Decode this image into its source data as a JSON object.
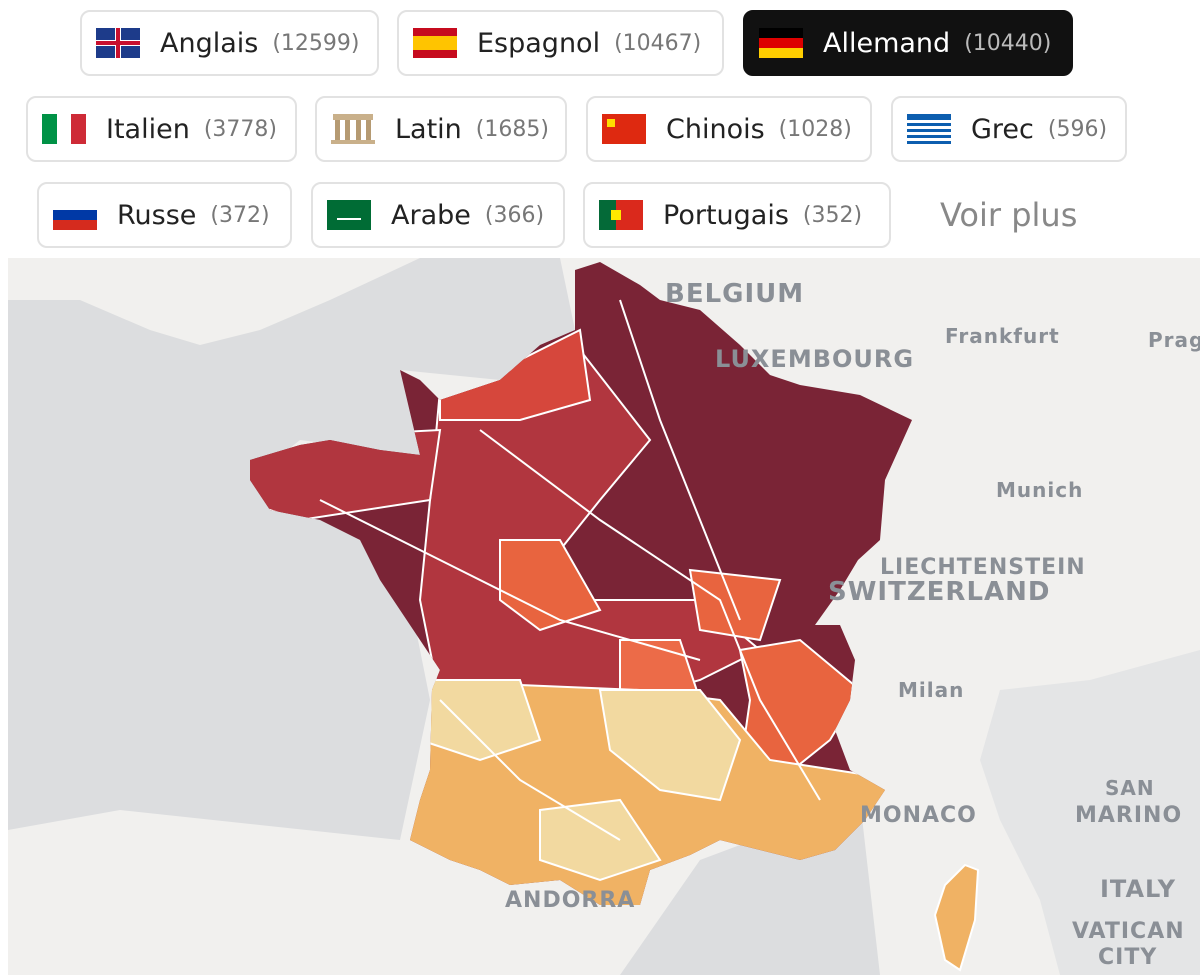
{
  "languages": [
    {
      "name": "Anglais",
      "count": "(12599)"
    },
    {
      "name": "Espagnol",
      "count": "(10467)"
    },
    {
      "name": "Allemand",
      "count": "(10440)"
    },
    {
      "name": "Italien",
      "count": "(3778)"
    },
    {
      "name": "Latin",
      "count": "(1685)"
    },
    {
      "name": "Chinois",
      "count": "(1028)"
    },
    {
      "name": "Grec",
      "count": "(596)"
    },
    {
      "name": "Russe",
      "count": "(372)"
    },
    {
      "name": "Arabe",
      "count": "(366)"
    },
    {
      "name": "Portugais",
      "count": "(352)"
    }
  ],
  "more": "Voir plus",
  "map_labels": [
    {
      "text": "BELGIUM"
    },
    {
      "text": "LUXEMBOURG"
    },
    {
      "text": "Frankfurt"
    },
    {
      "text": "Prague"
    },
    {
      "text": "Munich"
    },
    {
      "text": "LIECHTENSTEIN"
    },
    {
      "text": "SWITZERLAND"
    },
    {
      "text": "Milan"
    },
    {
      "text": "SAN"
    },
    {
      "text": "MARINO"
    },
    {
      "text": "MONACO"
    },
    {
      "text": "ITALY"
    },
    {
      "text": "VATICAN"
    },
    {
      "text": "CITY"
    },
    {
      "text": "ANDORRA"
    }
  ]
}
